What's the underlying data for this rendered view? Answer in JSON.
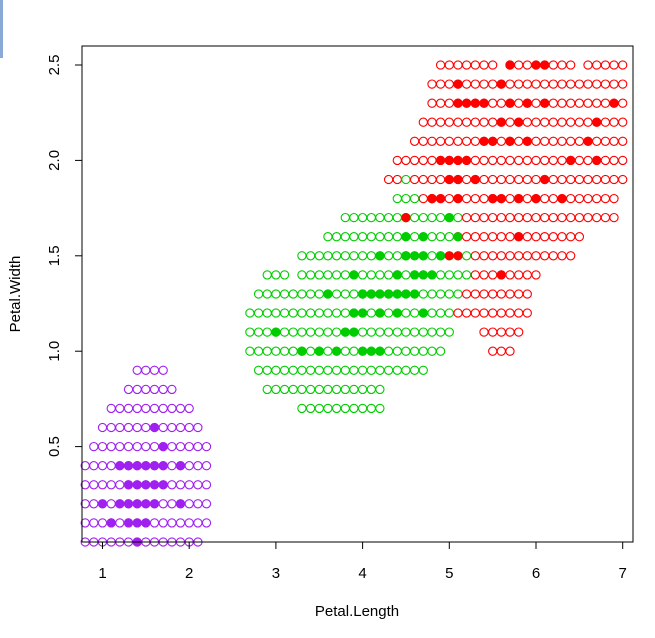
{
  "chart_data": {
    "type": "scatter",
    "title": "",
    "xlabel": "Petal.Length",
    "ylabel": "Petal.Width",
    "xlim": [
      0.75,
      7.1
    ],
    "ylim": [
      -0.01,
      2.6
    ],
    "xticks": [
      1,
      2,
      3,
      4,
      5,
      6,
      7
    ],
    "yticks": [
      0.5,
      1.0,
      1.5,
      2.0,
      2.5
    ],
    "ytick_labels": [
      "0.5",
      "1.0",
      "1.5",
      "2.0",
      "2.5"
    ],
    "grid": false,
    "legend": "none",
    "colors": {
      "setosa": "#a020f0",
      "versicolor": "#00cd00",
      "virginica": "#ff0000"
    },
    "grid_points": {
      "x_step": 0.1,
      "y_step": 0.1,
      "hollow_marker": "circle-open",
      "rows": [
        {
          "y": 0.0,
          "runs": [
            {
              "class": "setosa",
              "x": [
                0.8,
                2.1
              ]
            }
          ]
        },
        {
          "y": 0.1,
          "runs": [
            {
              "class": "setosa",
              "x": [
                0.8,
                2.2
              ]
            }
          ]
        },
        {
          "y": 0.2,
          "runs": [
            {
              "class": "setosa",
              "x": [
                0.8,
                2.2
              ]
            }
          ]
        },
        {
          "y": 0.3,
          "runs": [
            {
              "class": "setosa",
              "x": [
                0.8,
                2.2
              ]
            }
          ]
        },
        {
          "y": 0.4,
          "runs": [
            {
              "class": "setosa",
              "x": [
                0.8,
                2.2
              ]
            }
          ]
        },
        {
          "y": 0.5,
          "runs": [
            {
              "class": "setosa",
              "x": [
                0.9,
                2.2
              ]
            }
          ]
        },
        {
          "y": 0.6,
          "runs": [
            {
              "class": "setosa",
              "x": [
                1.0,
                2.1
              ]
            }
          ]
        },
        {
          "y": 0.7,
          "runs": [
            {
              "class": "setosa",
              "x": [
                1.1,
                2.0
              ]
            },
            {
              "class": "versicolor",
              "x": [
                3.3,
                4.2
              ]
            }
          ]
        },
        {
          "y": 0.8,
          "runs": [
            {
              "class": "setosa",
              "x": [
                1.3,
                1.8
              ]
            },
            {
              "class": "versicolor",
              "x": [
                2.9,
                4.2
              ]
            }
          ]
        },
        {
          "y": 0.9,
          "runs": [
            {
              "class": "setosa",
              "x": [
                1.4,
                1.7
              ]
            },
            {
              "class": "versicolor",
              "x": [
                2.8,
                4.7
              ]
            }
          ]
        },
        {
          "y": 1.0,
          "runs": [
            {
              "class": "versicolor",
              "x": [
                2.7,
                4.9
              ]
            },
            {
              "class": "virginica",
              "x": [
                5.5,
                5.7
              ]
            }
          ]
        },
        {
          "y": 1.1,
          "runs": [
            {
              "class": "versicolor",
              "x": [
                2.7,
                5.0
              ]
            },
            {
              "class": "virginica",
              "x": [
                5.4,
                5.8
              ]
            }
          ]
        },
        {
          "y": 1.2,
          "runs": [
            {
              "class": "versicolor",
              "x": [
                2.7,
                5.0
              ]
            },
            {
              "class": "virginica",
              "x": [
                5.1,
                5.9
              ]
            }
          ]
        },
        {
          "y": 1.3,
          "runs": [
            {
              "class": "versicolor",
              "x": [
                2.8,
                5.1
              ]
            },
            {
              "class": "virginica",
              "x": [
                5.2,
                5.9
              ]
            }
          ]
        },
        {
          "y": 1.4,
          "runs": [
            {
              "class": "versicolor",
              "x": [
                2.9,
                3.1
              ]
            },
            {
              "class": "versicolor",
              "x": [
                3.3,
                5.2
              ]
            },
            {
              "class": "virginica",
              "x": [
                5.3,
                6.0
              ]
            }
          ]
        },
        {
          "y": 1.5,
          "runs": [
            {
              "class": "versicolor",
              "x": [
                3.3,
                5.2
              ]
            },
            {
              "class": "virginica",
              "x": [
                5.3,
                6.4
              ]
            }
          ]
        },
        {
          "y": 1.6,
          "runs": [
            {
              "class": "versicolor",
              "x": [
                3.6,
                5.0
              ]
            },
            {
              "class": "virginica",
              "x": [
                5.1,
                6.5
              ]
            }
          ]
        },
        {
          "y": 1.7,
          "runs": [
            {
              "class": "versicolor",
              "x": [
                3.8,
                5.1
              ]
            },
            {
              "class": "virginica",
              "x": [
                5.2,
                6.9
              ]
            }
          ]
        },
        {
          "y": 1.8,
          "runs": [
            {
              "class": "versicolor",
              "x": [
                4.4,
                4.6
              ]
            },
            {
              "class": "virginica",
              "x": [
                4.7,
                6.9
              ]
            }
          ]
        },
        {
          "y": 1.9,
          "runs": [
            {
              "class": "virginica",
              "x": [
                4.3,
                4.4
              ]
            },
            {
              "class": "versicolor",
              "x": [
                4.5,
                4.5
              ]
            },
            {
              "class": "virginica",
              "x": [
                4.6,
                7.0
              ]
            }
          ]
        },
        {
          "y": 2.0,
          "runs": [
            {
              "class": "virginica",
              "x": [
                4.4,
                7.0
              ]
            }
          ]
        },
        {
          "y": 2.1,
          "runs": [
            {
              "class": "virginica",
              "x": [
                4.6,
                7.0
              ]
            }
          ]
        },
        {
          "y": 2.2,
          "runs": [
            {
              "class": "virginica",
              "x": [
                4.7,
                7.0
              ]
            }
          ]
        },
        {
          "y": 2.3,
          "runs": [
            {
              "class": "virginica",
              "x": [
                4.8,
                7.0
              ]
            }
          ]
        },
        {
          "y": 2.4,
          "runs": [
            {
              "class": "virginica",
              "x": [
                4.8,
                7.0
              ]
            }
          ]
        },
        {
          "y": 2.5,
          "runs": [
            {
              "class": "virginica",
              "x": [
                4.9,
                5.5
              ]
            },
            {
              "class": "virginica",
              "x": [
                5.7,
                6.4
              ]
            },
            {
              "class": "virginica",
              "x": [
                6.6,
                7.0
              ]
            }
          ]
        }
      ]
    },
    "observations": [
      {
        "class": "setosa",
        "x": 1.4,
        "y": 0.2
      },
      {
        "class": "setosa",
        "x": 1.3,
        "y": 0.2
      },
      {
        "class": "setosa",
        "x": 1.5,
        "y": 0.2
      },
      {
        "class": "setosa",
        "x": 1.7,
        "y": 0.4
      },
      {
        "class": "setosa",
        "x": 1.4,
        "y": 0.3
      },
      {
        "class": "setosa",
        "x": 1.5,
        "y": 0.1
      },
      {
        "class": "setosa",
        "x": 1.6,
        "y": 0.2
      },
      {
        "class": "setosa",
        "x": 1.1,
        "y": 0.1
      },
      {
        "class": "setosa",
        "x": 1.2,
        "y": 0.2
      },
      {
        "class": "setosa",
        "x": 1.0,
        "y": 0.2
      },
      {
        "class": "setosa",
        "x": 1.9,
        "y": 0.4
      },
      {
        "class": "setosa",
        "x": 1.6,
        "y": 0.4
      },
      {
        "class": "setosa",
        "x": 1.5,
        "y": 0.4
      },
      {
        "class": "setosa",
        "x": 1.3,
        "y": 0.3
      },
      {
        "class": "setosa",
        "x": 1.7,
        "y": 0.3
      },
      {
        "class": "setosa",
        "x": 1.5,
        "y": 0.3
      },
      {
        "class": "setosa",
        "x": 1.6,
        "y": 0.6
      },
      {
        "class": "setosa",
        "x": 1.9,
        "y": 0.2
      },
      {
        "class": "setosa",
        "x": 1.7,
        "y": 0.5
      },
      {
        "class": "setosa",
        "x": 1.3,
        "y": 0.4
      },
      {
        "class": "setosa",
        "x": 1.4,
        "y": 0.1
      },
      {
        "class": "setosa",
        "x": 1.2,
        "y": 0.4
      },
      {
        "class": "setosa",
        "x": 1.4,
        "y": 0.4
      },
      {
        "class": "setosa",
        "x": 1.6,
        "y": 0.3
      },
      {
        "class": "setosa",
        "x": 1.3,
        "y": 0.1
      },
      {
        "class": "setosa",
        "x": 1.4,
        "y": 0.0
      },
      {
        "class": "versicolor",
        "x": 4.7,
        "y": 1.4
      },
      {
        "class": "versicolor",
        "x": 4.5,
        "y": 1.5
      },
      {
        "class": "versicolor",
        "x": 4.9,
        "y": 1.5
      },
      {
        "class": "versicolor",
        "x": 4.0,
        "y": 1.3
      },
      {
        "class": "versicolor",
        "x": 4.6,
        "y": 1.5
      },
      {
        "class": "versicolor",
        "x": 4.5,
        "y": 1.3
      },
      {
        "class": "versicolor",
        "x": 4.7,
        "y": 1.6
      },
      {
        "class": "versicolor",
        "x": 3.3,
        "y": 1.0
      },
      {
        "class": "versicolor",
        "x": 4.6,
        "y": 1.3
      },
      {
        "class": "versicolor",
        "x": 3.9,
        "y": 1.4
      },
      {
        "class": "versicolor",
        "x": 3.5,
        "y": 1.0
      },
      {
        "class": "versicolor",
        "x": 4.2,
        "y": 1.5
      },
      {
        "class": "versicolor",
        "x": 4.0,
        "y": 1.0
      },
      {
        "class": "versicolor",
        "x": 3.6,
        "y": 1.3
      },
      {
        "class": "versicolor",
        "x": 4.4,
        "y": 1.4
      },
      {
        "class": "versicolor",
        "x": 4.1,
        "y": 1.0
      },
      {
        "class": "versicolor",
        "x": 4.5,
        "y": 1.5
      },
      {
        "class": "versicolor",
        "x": 3.9,
        "y": 1.1
      },
      {
        "class": "versicolor",
        "x": 4.8,
        "y": 1.8
      },
      {
        "class": "versicolor",
        "x": 4.0,
        "y": 1.3
      },
      {
        "class": "versicolor",
        "x": 4.9,
        "y": 1.5
      },
      {
        "class": "versicolor",
        "x": 4.7,
        "y": 1.2
      },
      {
        "class": "versicolor",
        "x": 4.3,
        "y": 1.3
      },
      {
        "class": "versicolor",
        "x": 4.4,
        "y": 1.4
      },
      {
        "class": "versicolor",
        "x": 4.8,
        "y": 1.4
      },
      {
        "class": "versicolor",
        "x": 5.0,
        "y": 1.7
      },
      {
        "class": "versicolor",
        "x": 4.5,
        "y": 1.5
      },
      {
        "class": "versicolor",
        "x": 3.5,
        "y": 1.0
      },
      {
        "class": "versicolor",
        "x": 3.8,
        "y": 1.1
      },
      {
        "class": "versicolor",
        "x": 3.7,
        "y": 1.0
      },
      {
        "class": "versicolor",
        "x": 3.9,
        "y": 1.2
      },
      {
        "class": "versicolor",
        "x": 5.1,
        "y": 1.6
      },
      {
        "class": "versicolor",
        "x": 4.5,
        "y": 1.5
      },
      {
        "class": "versicolor",
        "x": 4.5,
        "y": 1.6
      },
      {
        "class": "versicolor",
        "x": 4.7,
        "y": 1.5
      },
      {
        "class": "versicolor",
        "x": 4.4,
        "y": 1.3
      },
      {
        "class": "versicolor",
        "x": 4.1,
        "y": 1.3
      },
      {
        "class": "versicolor",
        "x": 4.0,
        "y": 1.3
      },
      {
        "class": "versicolor",
        "x": 4.4,
        "y": 1.2
      },
      {
        "class": "versicolor",
        "x": 4.6,
        "y": 1.4
      },
      {
        "class": "versicolor",
        "x": 4.0,
        "y": 1.2
      },
      {
        "class": "versicolor",
        "x": 3.3,
        "y": 1.0
      },
      {
        "class": "versicolor",
        "x": 4.2,
        "y": 1.3
      },
      {
        "class": "versicolor",
        "x": 4.2,
        "y": 1.2
      },
      {
        "class": "versicolor",
        "x": 4.3,
        "y": 1.3
      },
      {
        "class": "versicolor",
        "x": 3.0,
        "y": 1.1
      },
      {
        "class": "versicolor",
        "x": 4.1,
        "y": 1.3
      },
      {
        "class": "versicolor",
        "x": 4.2,
        "y": 1.0
      },
      {
        "class": "versicolor",
        "x": 4.5,
        "y": 1.7
      },
      {
        "class": "virginica",
        "x": 6.0,
        "y": 2.5
      },
      {
        "class": "virginica",
        "x": 5.1,
        "y": 1.9
      },
      {
        "class": "virginica",
        "x": 5.9,
        "y": 2.1
      },
      {
        "class": "virginica",
        "x": 5.6,
        "y": 1.8
      },
      {
        "class": "virginica",
        "x": 5.8,
        "y": 2.2
      },
      {
        "class": "virginica",
        "x": 6.6,
        "y": 2.1
      },
      {
        "class": "virginica",
        "x": 4.5,
        "y": 1.7
      },
      {
        "class": "virginica",
        "x": 6.3,
        "y": 1.8
      },
      {
        "class": "virginica",
        "x": 6.1,
        "y": 2.5
      },
      {
        "class": "virginica",
        "x": 5.3,
        "y": 1.9
      },
      {
        "class": "virginica",
        "x": 5.5,
        "y": 2.1
      },
      {
        "class": "virginica",
        "x": 5.0,
        "y": 2.0
      },
      {
        "class": "virginica",
        "x": 5.1,
        "y": 2.4
      },
      {
        "class": "virginica",
        "x": 5.3,
        "y": 2.3
      },
      {
        "class": "virginica",
        "x": 5.5,
        "y": 1.8
      },
      {
        "class": "virginica",
        "x": 6.7,
        "y": 2.2
      },
      {
        "class": "virginica",
        "x": 6.9,
        "y": 2.3
      },
      {
        "class": "virginica",
        "x": 5.0,
        "y": 1.5
      },
      {
        "class": "virginica",
        "x": 5.7,
        "y": 2.3
      },
      {
        "class": "virginica",
        "x": 4.9,
        "y": 2.0
      },
      {
        "class": "virginica",
        "x": 6.7,
        "y": 2.0
      },
      {
        "class": "virginica",
        "x": 4.9,
        "y": 1.8
      },
      {
        "class": "virginica",
        "x": 5.7,
        "y": 2.1
      },
      {
        "class": "virginica",
        "x": 6.0,
        "y": 1.8
      },
      {
        "class": "virginica",
        "x": 4.8,
        "y": 1.8
      },
      {
        "class": "virginica",
        "x": 5.8,
        "y": 1.6
      },
      {
        "class": "virginica",
        "x": 6.1,
        "y": 1.9
      },
      {
        "class": "virginica",
        "x": 6.4,
        "y": 2.0
      },
      {
        "class": "virginica",
        "x": 5.6,
        "y": 2.2
      },
      {
        "class": "virginica",
        "x": 5.1,
        "y": 1.5
      },
      {
        "class": "virginica",
        "x": 5.6,
        "y": 1.4
      },
      {
        "class": "virginica",
        "x": 6.1,
        "y": 2.3
      },
      {
        "class": "virginica",
        "x": 5.6,
        "y": 2.4
      },
      {
        "class": "virginica",
        "x": 5.5,
        "y": 1.8
      },
      {
        "class": "virginica",
        "x": 4.8,
        "y": 1.8
      },
      {
        "class": "virginica",
        "x": 5.4,
        "y": 2.1
      },
      {
        "class": "virginica",
        "x": 5.1,
        "y": 2.3
      },
      {
        "class": "virginica",
        "x": 5.9,
        "y": 2.3
      },
      {
        "class": "virginica",
        "x": 5.7,
        "y": 2.5
      },
      {
        "class": "virginica",
        "x": 5.2,
        "y": 2.3
      },
      {
        "class": "virginica",
        "x": 5.0,
        "y": 1.9
      },
      {
        "class": "virginica",
        "x": 5.2,
        "y": 2.0
      },
      {
        "class": "virginica",
        "x": 5.4,
        "y": 2.3
      },
      {
        "class": "virginica",
        "x": 5.1,
        "y": 1.8
      },
      {
        "class": "virginica",
        "x": 5.8,
        "y": 1.8
      },
      {
        "class": "virginica",
        "x": 5.7,
        "y": 2.5
      },
      {
        "class": "virginica",
        "x": 5.1,
        "y": 2.0
      }
    ]
  }
}
